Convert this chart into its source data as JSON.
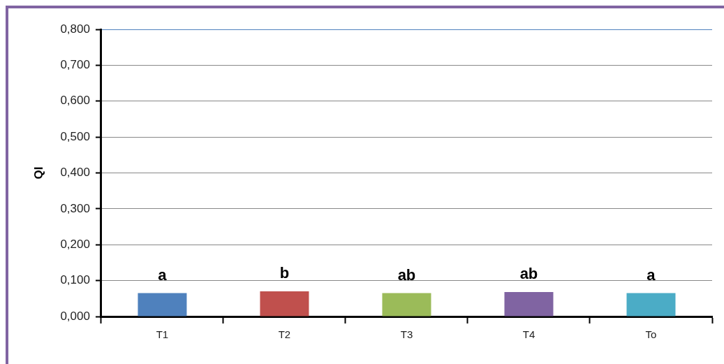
{
  "chart_data": {
    "type": "bar",
    "ylabel": "QI",
    "categories": [
      "T1",
      "T2",
      "T3",
      "T4",
      "To"
    ],
    "values": [
      0.065,
      0.07,
      0.065,
      0.068,
      0.065
    ],
    "colors": [
      "#4f81bd",
      "#c0504d",
      "#9bbb59",
      "#8064a2",
      "#4bacc6"
    ],
    "ylim": [
      0,
      0.8
    ],
    "yticks": [
      {
        "value": 0,
        "label": "0,000"
      },
      {
        "value": 0.1,
        "label": "0,100"
      },
      {
        "value": 0.2,
        "label": "0,200"
      },
      {
        "value": 0.3,
        "label": "0,300"
      },
      {
        "value": 0.4,
        "label": "0,400"
      },
      {
        "value": 0.5,
        "label": "0,500"
      },
      {
        "value": 0.6,
        "label": "0,600"
      },
      {
        "value": 0.7,
        "label": "0,700"
      },
      {
        "value": 0.8,
        "label": "0,800"
      }
    ],
    "grid": "y",
    "legend": false,
    "annotations": [
      {
        "text": "a",
        "x": "T1",
        "y": 0.065
      },
      {
        "text": "b",
        "x": "T2",
        "y": 0.07
      },
      {
        "text": "ab",
        "x": "T3",
        "y": 0.065
      },
      {
        "text": "ab",
        "x": "T4",
        "y": 0.068
      },
      {
        "text": "a",
        "x": "To",
        "y": 0.065
      }
    ]
  }
}
